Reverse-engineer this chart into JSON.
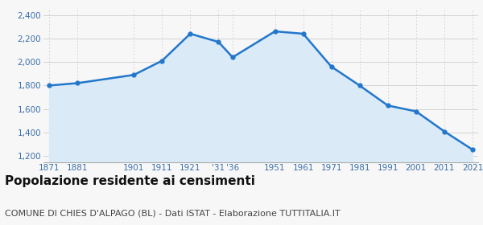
{
  "years": [
    1871,
    1881,
    1901,
    1911,
    1921,
    1931,
    1936,
    1951,
    1961,
    1971,
    1981,
    1991,
    2001,
    2011,
    2021
  ],
  "population": [
    1800,
    1820,
    1890,
    2010,
    2240,
    2170,
    2040,
    2260,
    2240,
    1960,
    1800,
    1630,
    1580,
    1410,
    1255
  ],
  "x_labels": [
    "1871",
    "1881",
    "1901",
    "1911",
    "1921",
    "'31",
    "'36",
    "1951",
    "1961",
    "1971",
    "1981",
    "1991",
    "2001",
    "2011",
    "2021"
  ],
  "line_color": "#2277cc",
  "fill_color": "#daeaf7",
  "marker_color": "#2277cc",
  "grid_color": "#cccccc",
  "background_color": "#f7f7f7",
  "ylim": [
    1150,
    2450
  ],
  "yticks": [
    1200,
    1400,
    1600,
    1800,
    2000,
    2200,
    2400
  ],
  "title": "Popolazione residente ai censimenti",
  "subtitle": "COMUNE DI CHIES D'ALPAGO (BL) - Dati ISTAT - Elaborazione TUTTITALIA.IT",
  "title_fontsize": 11,
  "subtitle_fontsize": 8,
  "title_color": "#111111",
  "subtitle_color": "#444444",
  "axis_label_color": "#3a6fa8"
}
